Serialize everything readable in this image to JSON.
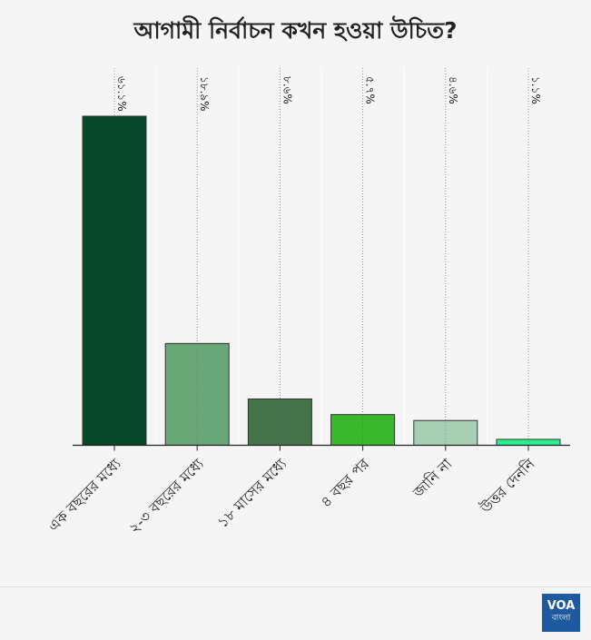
{
  "header": {
    "title": "আগামী নির্বাচন কখন হওয়া উচিত?"
  },
  "colors": {
    "bars": [
      "#07472a",
      "#6aa777",
      "#45744a",
      "#39b82c",
      "#a7cfb4",
      "#29f18d"
    ],
    "axis": "#222222",
    "grid": "#bbbbbb",
    "logo_bg": "#1e5aa0"
  },
  "chart_data": {
    "type": "bar",
    "title": "আগামী নির্বাচন কখন হওয়া উচিত?",
    "categories": [
      "এক বছরের মধ্যে",
      "২-৩ বছরের মধ্যে",
      "১৮ মাসের মধ্যে",
      "৪ বছর পর",
      "জানি না",
      "উত্তর দেননি"
    ],
    "values": [
      61.1,
      18.9,
      8.6,
      5.7,
      4.6,
      1.1
    ],
    "value_labels": [
      "৬১.১%",
      "১৮.৯%",
      "৮.৬%",
      "৫.৭%",
      "৪.৬%",
      "১.১%"
    ],
    "ylim": [
      0,
      61.1
    ],
    "grid": true,
    "grid_style": "vertical dotted",
    "xlabel": "",
    "ylabel": ""
  },
  "footer": {
    "logo_text": "VOA",
    "logo_subtext": "বাংলা",
    "logo_icon": "voa-logo-icon"
  }
}
